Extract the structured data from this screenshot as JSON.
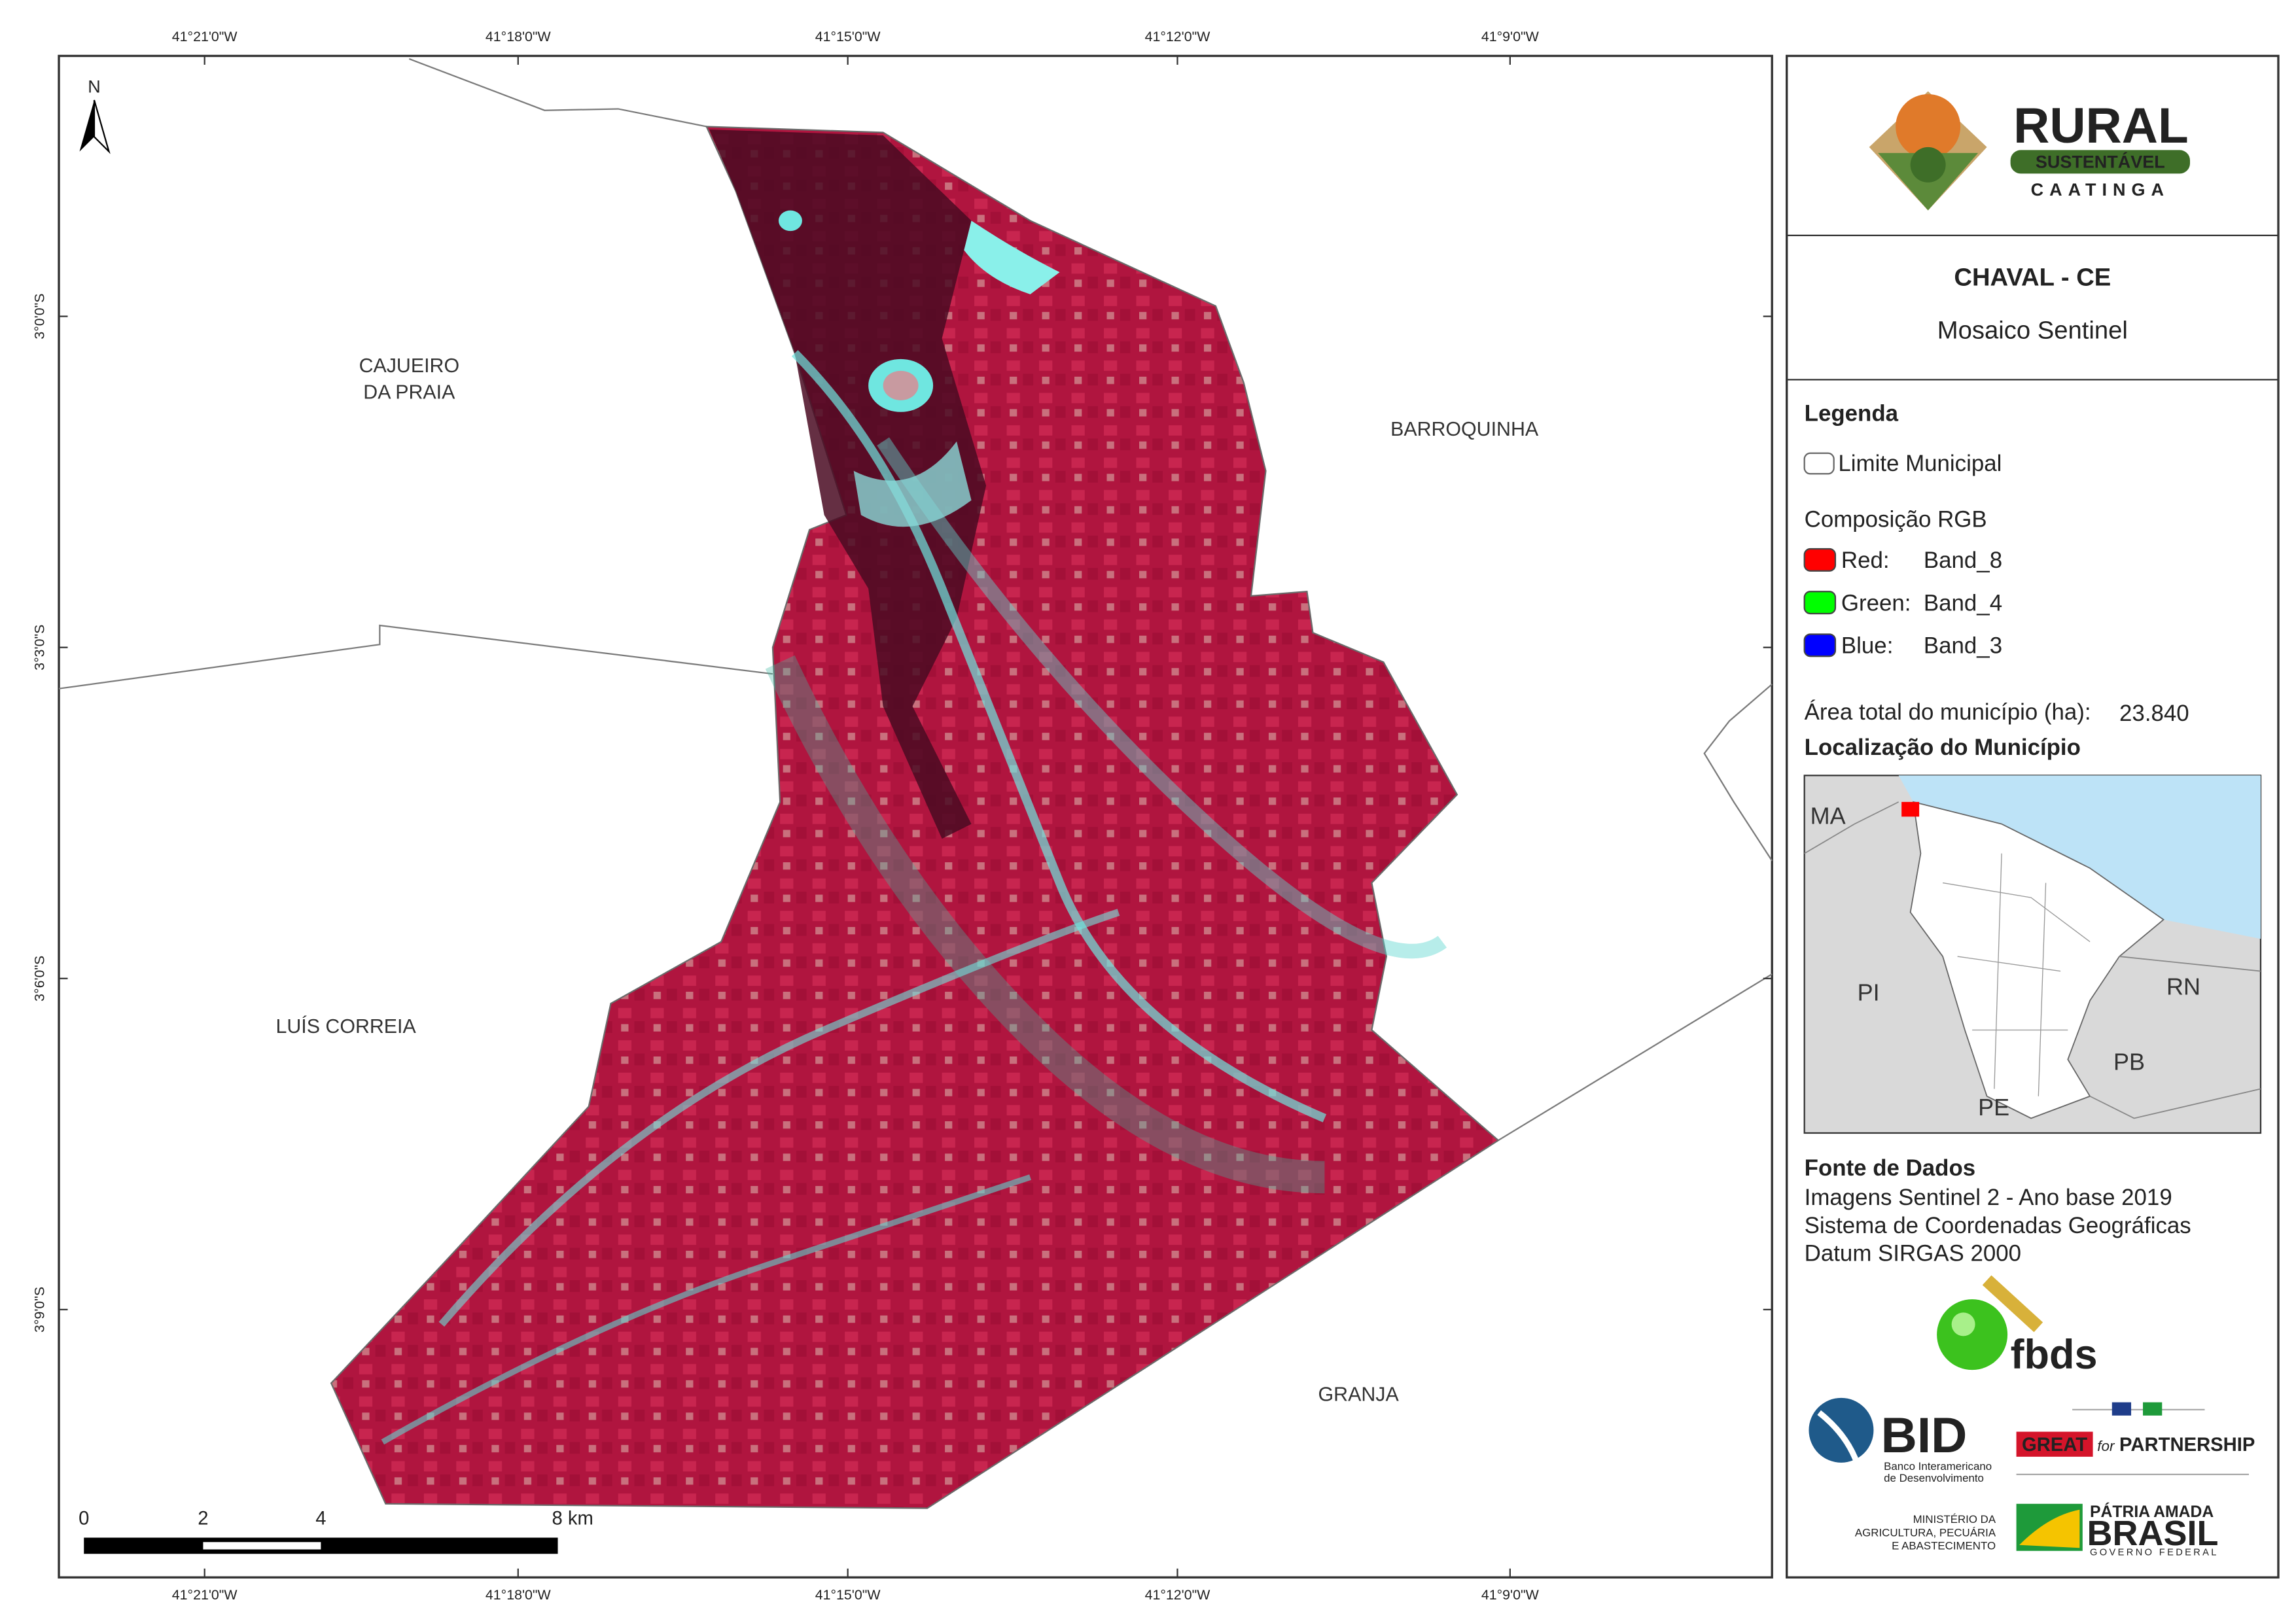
{
  "map": {
    "north_arrow": "N",
    "top_labels": [
      "41°21'0\"W",
      "41°18'0\"W",
      "41°15'0\"W",
      "41°12'0\"W",
      "41°9'0\"W"
    ],
    "bottom_labels": [
      "41°21'0\"W",
      "41°18'0\"W",
      "41°15'0\"W",
      "41°12'0\"W",
      "41°9'0\"W"
    ],
    "left_labels": [
      "3°0'0\"S",
      "3°3'0\"S",
      "3°6'0\"S",
      "3°9'0\"S"
    ],
    "places": [
      [
        "CAJUEIRO",
        "DA PRAIA"
      ],
      [
        "BARROQUINHA"
      ],
      [
        "LUÍS CORREIA"
      ],
      [
        "GRANJA"
      ]
    ],
    "scale_bar": [
      "0",
      "2",
      "4",
      "8 km"
    ]
  },
  "panel": {
    "logo": {
      "name": "RURAL",
      "ribbon": "SUSTENTÁVEL",
      "sub": "CAATINGA"
    },
    "title": "CHAVAL - CE",
    "subtitle": "Mosaico Sentinel",
    "legend": {
      "title": "Legenda",
      "boundary": "Limite Municipal",
      "rgb_title": "Composição RGB",
      "bands": [
        {
          "channel": "Red:",
          "band": "Band_8",
          "color": "#ff0000"
        },
        {
          "channel": "Green:",
          "band": "Band_4",
          "color": "#00ff00"
        },
        {
          "channel": "Blue:",
          "band": "Band_3",
          "color": "#0000ff"
        }
      ],
      "area_label": "Área total do município (ha):",
      "area_value": "23.840"
    },
    "location_title": "Localização do Município",
    "inset_labels": [
      "MA",
      "PI",
      "RN",
      "PB",
      "PE"
    ],
    "sources": {
      "title": "Fonte de Dados",
      "lines": [
        "Imagens Sentinel 2 - Ano base 2019",
        "Sistema de Coordenadas Geográficas",
        "Datum SIRGAS 2000"
      ]
    },
    "logos": {
      "fbds": "fbds",
      "bid": "BID",
      "bid_sub": [
        "Banco Interamericano",
        "de Desenvolvimento"
      ],
      "great": "GREAT",
      "great_for": "for",
      "great_partnership": "PARTNERSHIP",
      "ministry": [
        "MINISTÉRIO DA",
        "AGRICULTURA, PECUÁRIA",
        "E ABASTECIMENTO"
      ],
      "brasil_top": "PÁTRIA AMADA",
      "brasil": "BRASIL",
      "brasil_sub": "GOVERNO FEDERAL"
    }
  }
}
